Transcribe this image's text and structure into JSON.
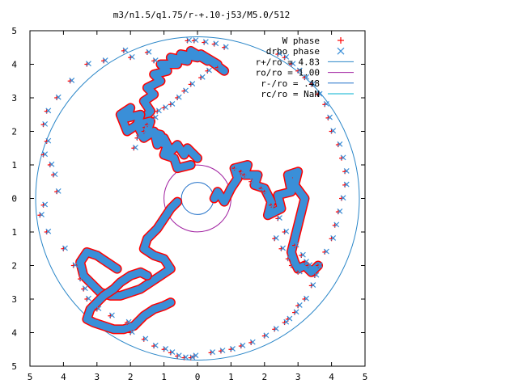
{
  "chart_data": {
    "type": "scatter",
    "title": "m3/n1.5/q1.75/r-+.10-j53/M5.0/512",
    "xlim": [
      -5,
      5
    ],
    "ylim": [
      -5,
      5
    ],
    "x_tick_labels": [
      "5",
      "4",
      "3",
      "2",
      "1",
      "0",
      "1",
      "2",
      "3",
      "4",
      "5"
    ],
    "y_tick_labels": [
      "5",
      "4",
      "3",
      "2",
      "1",
      "0",
      "1",
      "2",
      "3",
      "4",
      "5"
    ],
    "grid": false,
    "legend_position": "top-right",
    "legend": [
      {
        "label": "W phase",
        "marker": "plus",
        "color": "#ff0000"
      },
      {
        "label": "drho phase",
        "marker": "cross",
        "color": "#3a8fd8"
      },
      {
        "label": "r+/ro = 4.83",
        "line": true,
        "color": "#2a86c8"
      },
      {
        "label": "ro/ro = 1.00",
        "line": true,
        "color": "#a020a0"
      },
      {
        "label": "r-/ro = .48",
        "line": true,
        "color": "#1f6fc8"
      },
      {
        "label": "rc/ro = NaN",
        "line": true,
        "color": "#00b0d0"
      }
    ],
    "circles": [
      {
        "name": "r+/ro = 4.83",
        "r": 4.83,
        "color": "#2a86c8"
      },
      {
        "name": "ro/ro = 1.00",
        "r": 1.0,
        "color": "#a020a0"
      },
      {
        "name": "r-/ro = .48",
        "r": 0.48,
        "color": "#1f6fc8"
      }
    ],
    "series": [
      {
        "name": "W phase",
        "marker": "plus",
        "color": "#ff0000",
        "x": [
          -0.3,
          -0.1,
          0.2,
          0.5,
          0.8,
          -1.5,
          -1.3,
          -2.0,
          -2.2,
          -2.8,
          -3.3,
          -3.8,
          -4.2,
          -4.5,
          -4.6,
          -4.5,
          -4.6,
          -4.4,
          -4.3,
          -4.2,
          -4.6,
          -4.7,
          -4.5,
          -4.0,
          -3.7,
          -3.5,
          -3.4,
          -3.3,
          -3.0,
          -2.6,
          -2.1,
          -2.0,
          -1.6,
          -1.3,
          -1.0,
          -0.8,
          -0.6,
          -0.4,
          -0.2,
          -0.1,
          0.4,
          0.7,
          1.0,
          1.3,
          1.6,
          2.0,
          2.3,
          2.6,
          2.7,
          2.9,
          3.0,
          3.2,
          3.4,
          3.5,
          3.6,
          3.8,
          4.0,
          4.1,
          4.2,
          4.3,
          4.4,
          4.4,
          4.3,
          4.2,
          4.0,
          3.9,
          3.8,
          3.6,
          3.4,
          3.2,
          3.0,
          2.8,
          2.6,
          2.4,
          -1.9,
          -1.8,
          -1.6,
          -1.5,
          -1.3,
          -1.2,
          -1.0,
          -0.8,
          -0.6,
          -0.4,
          -0.2,
          0.1,
          0.3,
          0.6,
          1.1,
          1.3,
          1.4,
          1.6,
          1.9,
          2.0,
          2.2,
          2.4,
          2.6,
          2.9,
          3.1,
          3.2,
          3.3,
          3.0,
          2.8,
          2.7,
          2.5,
          2.3
        ],
        "y": [
          4.7,
          4.7,
          4.65,
          4.6,
          4.5,
          4.35,
          4.1,
          4.2,
          4.4,
          4.1,
          4.0,
          3.5,
          3.0,
          2.6,
          2.2,
          1.7,
          1.3,
          1.0,
          0.7,
          0.2,
          -0.2,
          -0.5,
          -1.0,
          -1.5,
          -2.0,
          -2.4,
          -2.7,
          -3.0,
          -3.3,
          -3.5,
          -3.7,
          -4.0,
          -4.2,
          -4.4,
          -4.5,
          -4.6,
          -4.7,
          -4.75,
          -4.75,
          -4.7,
          -4.6,
          -4.55,
          -4.5,
          -4.4,
          -4.3,
          -4.1,
          -3.9,
          -3.7,
          -3.6,
          -3.4,
          -3.2,
          -3.0,
          -2.6,
          -2.3,
          -2.0,
          -1.6,
          -1.2,
          -0.8,
          -0.4,
          0.0,
          0.4,
          0.8,
          1.2,
          1.6,
          2.0,
          2.4,
          2.8,
          3.1,
          3.4,
          3.6,
          3.8,
          4.0,
          4.2,
          4.3,
          1.5,
          1.8,
          2.0,
          2.2,
          2.4,
          2.6,
          2.7,
          2.8,
          3.0,
          3.2,
          3.4,
          3.6,
          3.8,
          3.9,
          0.9,
          0.8,
          0.7,
          0.5,
          0.3,
          0.2,
          -0.2,
          -0.6,
          -1.0,
          -1.4,
          -1.7,
          -1.9,
          -2.0,
          -2.2,
          -2.0,
          -1.8,
          -1.5,
          -1.2
        ]
      },
      {
        "name": "drho phase",
        "marker": "cross",
        "color": "#3a8fd8",
        "x": [
          -0.25,
          -0.05,
          0.25,
          0.55,
          0.85,
          -1.45,
          -1.25,
          -1.95,
          -2.15,
          -2.75,
          -3.25,
          -3.75,
          -4.15,
          -4.45,
          -4.55,
          -4.45,
          -4.55,
          -4.35,
          -4.25,
          -4.15,
          -4.55,
          -4.65,
          -4.45,
          -3.95,
          -3.65,
          -3.45,
          -3.35,
          -3.25,
          -2.95,
          -2.55,
          -2.05,
          -1.95,
          -1.55,
          -1.25,
          -0.95,
          -0.75,
          -0.55,
          -0.35,
          -0.15,
          -0.05,
          0.45,
          0.75,
          1.05,
          1.35,
          1.65,
          2.05,
          2.35,
          2.65,
          2.75,
          2.95,
          3.05,
          3.25,
          3.45,
          3.55,
          3.65,
          3.85,
          4.05,
          4.15,
          4.25,
          4.35,
          4.45,
          4.45,
          4.35,
          4.25,
          4.05,
          3.95,
          3.85,
          3.65,
          3.45,
          3.25,
          3.05,
          2.85,
          2.65,
          2.45,
          -1.85,
          -1.75,
          -1.55,
          -1.45,
          -1.25,
          -1.15,
          -0.95,
          -0.75,
          -0.55,
          -0.35,
          -0.15,
          0.15,
          0.35,
          0.65,
          1.15,
          1.35,
          1.45,
          1.65,
          1.95,
          2.05,
          2.25,
          2.45,
          2.65,
          2.95,
          3.15,
          3.25,
          3.35,
          3.05,
          2.85,
          2.75,
          2.55,
          2.35
        ],
        "y": [
          4.72,
          4.72,
          4.67,
          4.62,
          4.52,
          4.37,
          4.12,
          4.22,
          4.42,
          4.12,
          4.02,
          3.52,
          3.02,
          2.62,
          2.22,
          1.72,
          1.32,
          1.02,
          0.72,
          0.22,
          -0.18,
          -0.48,
          -0.98,
          -1.48,
          -1.98,
          -2.38,
          -2.68,
          -2.98,
          -3.28,
          -3.48,
          -3.68,
          -3.98,
          -4.18,
          -4.38,
          -4.48,
          -4.58,
          -4.68,
          -4.73,
          -4.73,
          -4.68,
          -4.58,
          -4.53,
          -4.48,
          -4.38,
          -4.28,
          -4.08,
          -3.88,
          -3.68,
          -3.58,
          -3.38,
          -3.18,
          -2.98,
          -2.58,
          -2.28,
          -1.98,
          -1.58,
          -1.18,
          -0.78,
          -0.38,
          0.02,
          0.42,
          0.82,
          1.22,
          1.62,
          2.02,
          2.42,
          2.82,
          3.12,
          3.42,
          3.62,
          3.82,
          4.02,
          4.22,
          4.32,
          1.52,
          1.82,
          2.02,
          2.22,
          2.42,
          2.62,
          2.72,
          2.82,
          3.02,
          3.22,
          3.42,
          3.62,
          3.82,
          3.92,
          0.92,
          0.82,
          0.72,
          0.52,
          0.32,
          0.22,
          -0.18,
          -0.58,
          -0.98,
          -1.38,
          -1.68,
          -1.88,
          -1.98,
          -2.18,
          -1.98,
          -1.78,
          -1.48,
          -1.18
        ]
      }
    ],
    "arms": [
      {
        "name": "arm-upper",
        "color": "#3a8fd8",
        "outline": "#ff0000",
        "x": [
          -1.5,
          -1.6,
          -1.4,
          -1.6,
          -1.3,
          -1.5,
          -1.1,
          -1.3,
          -0.9,
          -1.1,
          -0.6,
          -0.8,
          -0.3,
          -0.5,
          0.0,
          -0.2,
          0.3,
          0.1,
          0.6,
          0.4,
          0.8
        ],
        "y": [
          2.1,
          2.4,
          2.6,
          2.9,
          3.1,
          3.3,
          3.5,
          3.7,
          3.8,
          4.0,
          4.0,
          4.2,
          4.1,
          4.3,
          4.2,
          4.4,
          4.1,
          4.3,
          4.0,
          4.1,
          3.8
        ]
      },
      {
        "name": "arm-left",
        "color": "#3a8fd8",
        "outline": "#ff0000",
        "x": [
          -0.2,
          -0.6,
          -0.7,
          -1.0,
          -0.9,
          -1.2,
          -1.1,
          -1.5,
          -1.4,
          -1.8,
          -1.7,
          -2.1,
          -2.0,
          -2.3,
          -2.1,
          -1.8,
          -1.6,
          -1.3,
          -1.2,
          -1.0,
          -0.8,
          -0.6,
          -0.4,
          -0.3,
          0.0
        ],
        "y": [
          1.0,
          0.9,
          1.2,
          1.3,
          1.6,
          1.7,
          1.9,
          2.0,
          2.3,
          2.2,
          2.5,
          2.4,
          2.7,
          2.5,
          2.0,
          2.2,
          1.8,
          2.0,
          1.6,
          1.8,
          1.4,
          1.6,
          1.3,
          1.5,
          1.2
        ]
      },
      {
        "name": "arm-right",
        "color": "#3a8fd8",
        "outline": "#ff0000",
        "x": [
          0.5,
          0.6,
          0.8,
          1.0,
          1.2,
          1.1,
          1.5,
          1.4,
          1.8,
          1.7,
          2.0,
          2.2,
          2.1,
          2.5,
          2.4,
          2.8,
          2.7,
          3.0,
          2.9,
          3.2,
          3.1,
          3.0,
          2.9,
          2.8,
          2.9,
          3.0,
          3.2,
          3.4,
          3.6
        ],
        "y": [
          0.0,
          0.2,
          -0.1,
          0.3,
          0.6,
          0.9,
          1.0,
          0.7,
          0.7,
          0.4,
          0.3,
          -0.1,
          -0.5,
          -0.3,
          0.1,
          0.2,
          0.7,
          0.8,
          0.4,
          0.0,
          -0.4,
          -0.8,
          -1.2,
          -1.6,
          -1.9,
          -2.1,
          -2.0,
          -2.2,
          -2.0
        ]
      },
      {
        "name": "arm-lower",
        "color": "#3a8fd8",
        "outline": "#ff0000",
        "x": [
          -0.6,
          -0.8,
          -1.0,
          -1.2,
          -1.5,
          -1.6,
          -1.3,
          -1.0,
          -0.8,
          -1.1,
          -1.4,
          -1.7,
          -2.0,
          -2.3,
          -2.6,
          -2.9,
          -3.1,
          -3.4,
          -3.5,
          -3.3,
          -3.0,
          -2.7,
          -2.4
        ],
        "y": [
          -0.1,
          -0.3,
          -0.6,
          -0.9,
          -1.2,
          -1.5,
          -1.7,
          -1.8,
          -2.1,
          -2.3,
          -2.5,
          -2.7,
          -2.8,
          -2.9,
          -2.9,
          -2.8,
          -2.6,
          -2.3,
          -1.9,
          -1.6,
          -1.7,
          -1.9,
          -2.1
        ]
      },
      {
        "name": "arm-lower-left",
        "color": "#3a8fd8",
        "outline": "#ff0000",
        "x": [
          -1.5,
          -1.7,
          -2.0,
          -2.3,
          -2.5,
          -2.8,
          -3.0,
          -3.2,
          -3.3,
          -3.1,
          -2.8,
          -2.5,
          -2.2,
          -1.9,
          -1.6,
          -1.3,
          -1.0,
          -0.8
        ],
        "y": [
          -2.3,
          -2.2,
          -2.3,
          -2.5,
          -2.7,
          -2.9,
          -3.1,
          -3.3,
          -3.6,
          -3.7,
          -3.8,
          -3.9,
          -3.9,
          -3.8,
          -3.5,
          -3.3,
          -3.2,
          -3.1
        ]
      }
    ]
  }
}
